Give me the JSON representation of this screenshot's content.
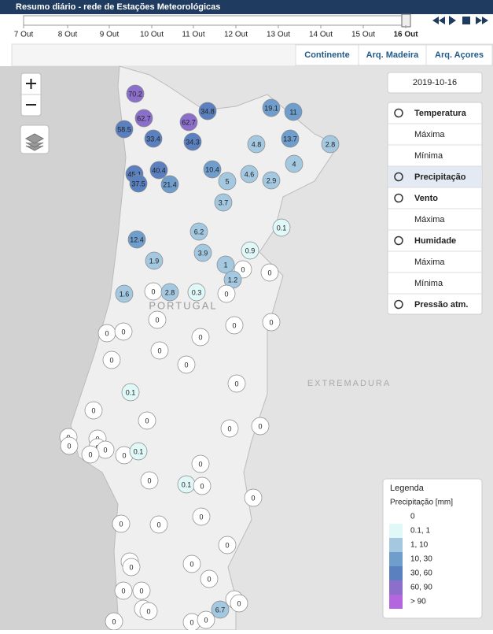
{
  "header": {
    "title": "Resumo diário - rede de Estações Meteorológicas"
  },
  "timeline": {
    "dates": [
      "7 Out",
      "8 Out",
      "9 Out",
      "10 Out",
      "11 Out",
      "12 Out",
      "13 Out",
      "14 Out",
      "15 Out",
      "16 Out"
    ]
  },
  "tabs": [
    "Continente",
    "Arq. Madeira",
    "Arq. Açores"
  ],
  "date": "2019-10-16",
  "menu": [
    "Temperatura",
    "Máxima",
    "Mínima",
    "Precipitação",
    "Vento",
    "Máxima",
    "Humidade",
    "Máxima",
    "Mínima",
    "Pressão atm."
  ],
  "map_labels": [
    "PORTUGAL",
    "EXTREMADURA"
  ],
  "legend": {
    "title": "Legenda",
    "subtitle": "Precipitação [mm]",
    "items": [
      {
        "label": "0",
        "color": "#ffffff"
      },
      {
        "label": "0.1, 1",
        "color": "#e0f8f8"
      },
      {
        "label": "1, 10",
        "color": "#a3c8e0"
      },
      {
        "label": "10, 30",
        "color": "#6f9dcc"
      },
      {
        "label": "30, 60",
        "color": "#5b80c0"
      },
      {
        "label": "60, 90",
        "color": "#8c6ecb"
      },
      {
        "label": "> 90",
        "color": "#b366dd"
      }
    ]
  },
  "stations": [
    {
      "value": 70.2,
      "color": "#8c6ecb"
    },
    {
      "value": 62.7,
      "color": "#8c6ecb"
    },
    {
      "value": 58.5,
      "color": "#5b80c0"
    },
    {
      "value": 33.4,
      "color": "#5b80c0"
    },
    {
      "value": 34.8,
      "color": "#5b80c0"
    },
    {
      "value": 62.7,
      "color": "#8c6ecb"
    },
    {
      "value": 34.3,
      "color": "#5b80c0"
    },
    {
      "value": 19.1,
      "color": "#6f9dcc"
    },
    {
      "value": 11,
      "color": "#6f9dcc"
    },
    {
      "value": 13.7,
      "color": "#6f9dcc"
    },
    {
      "value": 4.8,
      "color": "#a3c8e0"
    },
    {
      "value": 2.8,
      "color": "#a3c8e0"
    },
    {
      "value": 4,
      "color": "#a3c8e0"
    },
    {
      "value": 45.1,
      "color": "#5b80c0"
    },
    {
      "value": 40.4,
      "color": "#5b80c0"
    },
    {
      "value": 37.5,
      "color": "#5b80c0"
    },
    {
      "value": 21.4,
      "color": "#6f9dcc"
    },
    {
      "value": 10.4,
      "color": "#6f9dcc"
    },
    {
      "value": 5,
      "color": "#a3c8e0"
    },
    {
      "value": 4.6,
      "color": "#a3c8e0"
    },
    {
      "value": 2.9,
      "color": "#a3c8e0"
    },
    {
      "value": 3.7,
      "color": "#a3c8e0"
    },
    {
      "value": 0.1,
      "color": "#e0f8f8"
    },
    {
      "value": 6.2,
      "color": "#a3c8e0"
    },
    {
      "value": 12.4,
      "color": "#6f9dcc"
    },
    {
      "value": 3.9,
      "color": "#a3c8e0"
    },
    {
      "value": 0.9,
      "color": "#e0f8f8"
    },
    {
      "value": 1.9,
      "color": "#a3c8e0"
    },
    {
      "value": 1,
      "color": "#a3c8e0"
    },
    {
      "value": 0,
      "color": "#ffffff"
    },
    {
      "value": 0,
      "color": "#ffffff"
    },
    {
      "value": 1.2,
      "color": "#a3c8e0"
    },
    {
      "value": 1.6,
      "color": "#a3c8e0"
    },
    {
      "value": 0,
      "color": "#ffffff"
    },
    {
      "value": 2.8,
      "color": "#a3c8e0"
    },
    {
      "value": 0.3,
      "color": "#e0f8f8"
    },
    {
      "value": 0,
      "color": "#ffffff"
    },
    {
      "value": 0,
      "color": "#ffffff"
    },
    {
      "value": 0,
      "color": "#ffffff"
    },
    {
      "value": 0,
      "color": "#ffffff"
    },
    {
      "value": 0,
      "color": "#ffffff"
    },
    {
      "value": 0,
      "color": "#ffffff"
    },
    {
      "value": 0,
      "color": "#ffffff"
    },
    {
      "value": 0,
      "color": "#ffffff"
    },
    {
      "value": 0,
      "color": "#ffffff"
    },
    {
      "value": 0,
      "color": "#ffffff"
    },
    {
      "value": 0,
      "color": "#ffffff"
    },
    {
      "value": 0.1,
      "color": "#e0f8f8"
    },
    {
      "value": 0,
      "color": "#ffffff"
    },
    {
      "value": 0,
      "color": "#ffffff"
    },
    {
      "value": 0,
      "color": "#ffffff"
    },
    {
      "value": 0,
      "color": "#ffffff"
    },
    {
      "value": 0,
      "color": "#ffffff"
    },
    {
      "value": 0,
      "color": "#ffffff"
    },
    {
      "value": 0,
      "color": "#ffffff"
    },
    {
      "value": 0,
      "color": "#ffffff"
    },
    {
      "value": 0,
      "color": "#ffffff"
    },
    {
      "value": 0,
      "color": "#ffffff"
    },
    {
      "value": 0,
      "color": "#ffffff"
    },
    {
      "value": 0.1,
      "color": "#e0f8f8"
    },
    {
      "value": 0,
      "color": "#ffffff"
    },
    {
      "value": 0,
      "color": "#ffffff"
    },
    {
      "value": 0.1,
      "color": "#e0f8f8"
    },
    {
      "value": 0,
      "color": "#ffffff"
    },
    {
      "value": 0,
      "color": "#ffffff"
    },
    {
      "value": 0,
      "color": "#ffffff"
    },
    {
      "value": 0,
      "color": "#ffffff"
    },
    {
      "value": 0,
      "color": "#ffffff"
    },
    {
      "value": 0,
      "color": "#ffffff"
    },
    {
      "value": 0,
      "color": "#ffffff"
    },
    {
      "value": 0,
      "color": "#ffffff"
    },
    {
      "value": 0,
      "color": "#ffffff"
    },
    {
      "value": 0,
      "color": "#ffffff"
    },
    {
      "value": 0,
      "color": "#ffffff"
    },
    {
      "value": 0,
      "color": "#ffffff"
    },
    {
      "value": 0,
      "color": "#ffffff"
    },
    {
      "value": 0,
      "color": "#ffffff"
    },
    {
      "value": 0,
      "color": "#ffffff"
    },
    {
      "value": 0,
      "color": "#ffffff"
    },
    {
      "value": 6.7,
      "color": "#a3c8e0"
    },
    {
      "value": 0,
      "color": "#ffffff"
    },
    {
      "value": 0,
      "color": "#ffffff"
    },
    {
      "value": 0,
      "color": "#ffffff"
    }
  ]
}
